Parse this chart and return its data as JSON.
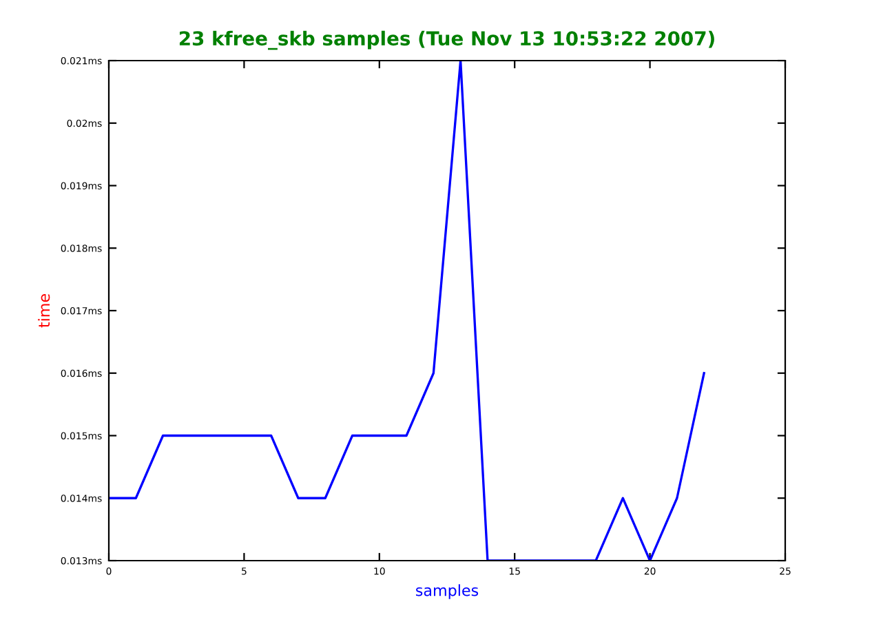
{
  "chart_data": {
    "type": "line",
    "title": "23 kfree_skb samples (Tue Nov 13 10:53:22 2007)",
    "xlabel": "samples",
    "ylabel": "time",
    "x": [
      0,
      1,
      2,
      3,
      4,
      5,
      6,
      7,
      8,
      9,
      10,
      11,
      12,
      13,
      14,
      15,
      16,
      17,
      18,
      19,
      20,
      21,
      22
    ],
    "series": [
      {
        "color": "#0000ff",
        "values": [
          0.014,
          0.014,
          0.015,
          0.015,
          0.015,
          0.015,
          0.015,
          0.014,
          0.014,
          0.015,
          0.015,
          0.015,
          0.016,
          0.021,
          0.013,
          0.013,
          0.013,
          0.013,
          0.013,
          0.014,
          0.013,
          0.014,
          0.016
        ]
      }
    ],
    "xlim": [
      0,
      25
    ],
    "xticks": [
      0,
      5,
      10,
      15,
      20,
      25
    ],
    "ylim": [
      0.013,
      0.021
    ],
    "yticks": [
      {
        "value": 0.013,
        "label": "0.013ms"
      },
      {
        "value": 0.014,
        "label": "0.014ms"
      },
      {
        "value": 0.015,
        "label": "0.015ms"
      },
      {
        "value": 0.016,
        "label": "0.016ms"
      },
      {
        "value": 0.017,
        "label": "0.017ms"
      },
      {
        "value": 0.018,
        "label": "0.018ms"
      },
      {
        "value": 0.019,
        "label": "0.019ms"
      },
      {
        "value": 0.02,
        "label": "0.02ms"
      },
      {
        "value": 0.021,
        "label": "0.021ms"
      }
    ],
    "grid": false,
    "legend": false,
    "marker": "none",
    "line_style": "solid"
  }
}
